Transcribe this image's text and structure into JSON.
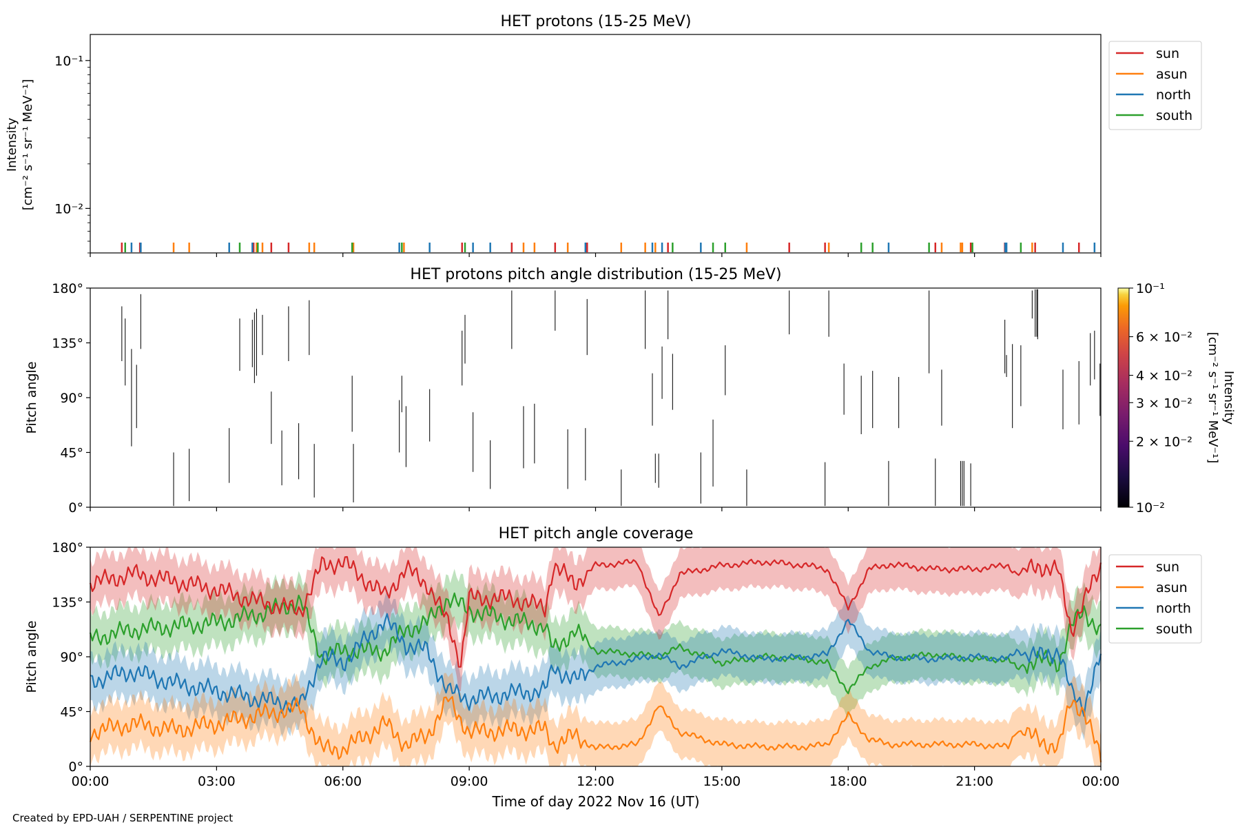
{
  "footer": "Created by EPD-UAH / SERPENTINE project",
  "colors": {
    "sun": "#d62728",
    "asun": "#ff7f0e",
    "north": "#1f77b4",
    "south": "#2ca02c"
  },
  "chart_data": [
    {
      "type": "line",
      "title": "HET protons (15-25 MeV)",
      "ylabel_line1": "Intensity",
      "ylabel_line2": "[cm⁻² s⁻¹ sr⁻¹ MeV⁻¹]",
      "yscale": "log",
      "ylim": [
        0.005,
        0.15
      ],
      "yticks": [
        {
          "value": 0.1,
          "label": "10⁻¹"
        },
        {
          "value": 0.01,
          "label": "10⁻²"
        }
      ],
      "xlim": [
        0,
        24
      ],
      "legend": {
        "position": "right",
        "labels": [
          "sun",
          "asun",
          "north",
          "south"
        ]
      },
      "series": [
        {
          "name": "sun",
          "color": "#d62728",
          "y": 0.005,
          "x": [
            0.75,
            1.18,
            3.88,
            4.3,
            4.71,
            8.83,
            10.01,
            11.04,
            11.8,
            13.72,
            16.6,
            17.45,
            20.07,
            20.91,
            21.72,
            22.44,
            23.48
          ]
        },
        {
          "name": "asun",
          "color": "#ff7f0e",
          "y": 0.005,
          "x": [
            1.98,
            2.35,
            3.95,
            4.09,
            5.2,
            5.32,
            6.25,
            7.45,
            10.29,
            10.55,
            11.34,
            12.61,
            13.18,
            13.42,
            15.59,
            17.54,
            20.22,
            20.67,
            20.71,
            22.37
          ]
        },
        {
          "name": "north",
          "color": "#1f77b4",
          "y": 0.005,
          "x": [
            0.98,
            1.2,
            3.3,
            3.85,
            7.34,
            8.06,
            9.09,
            9.5,
            11.76,
            13.35,
            13.58,
            14.5,
            18.96,
            21.73,
            21.76,
            23.1,
            23.85
          ]
        },
        {
          "name": "south",
          "color": "#2ca02c",
          "y": 0.005,
          "x": [
            0.83,
            3.55,
            3.98,
            6.22,
            7.4,
            8.9,
            13.83,
            14.79,
            15.08,
            18.31,
            18.58,
            19.92,
            20.95,
            22.1
          ]
        }
      ]
    },
    {
      "type": "heatmap",
      "title": "HET protons pitch angle distribution (15-25 MeV)",
      "ylabel": "Pitch angle",
      "ylim": [
        0,
        180
      ],
      "yticks": [
        "0°",
        "45°",
        "90°",
        "135°",
        "180°"
      ],
      "xlim": [
        0,
        24
      ],
      "colorbar": {
        "label_line1": "Intensity",
        "label_line2": "[cm⁻² s⁻¹ sr⁻¹ MeV⁻¹]",
        "scale": "log",
        "range": [
          0.01,
          0.1
        ],
        "ticks": [
          {
            "value": 0.1,
            "label": "10⁻¹"
          },
          {
            "value": 0.06,
            "label": "6 × 10⁻²"
          },
          {
            "value": 0.04,
            "label": "4 × 10⁻²"
          },
          {
            "value": 0.03,
            "label": "3 × 10⁻²"
          },
          {
            "value": 0.02,
            "label": "2 × 10⁻²"
          },
          {
            "value": 0.01,
            "label": "10⁻²"
          }
        ]
      },
      "segments": [
        [
          0.75,
          120,
          165
        ],
        [
          0.83,
          100,
          155
        ],
        [
          0.98,
          50,
          130
        ],
        [
          1.1,
          65,
          117
        ],
        [
          1.2,
          130,
          175
        ],
        [
          1.98,
          1,
          45
        ],
        [
          2.35,
          5,
          48
        ],
        [
          3.3,
          20,
          65
        ],
        [
          3.55,
          112,
          155
        ],
        [
          3.85,
          115,
          154
        ],
        [
          3.9,
          102,
          160
        ],
        [
          3.95,
          108,
          163
        ],
        [
          4.09,
          125,
          158
        ],
        [
          4.3,
          52,
          95
        ],
        [
          4.55,
          18,
          63
        ],
        [
          4.71,
          120,
          165
        ],
        [
          4.95,
          23,
          69
        ],
        [
          5.2,
          125,
          170
        ],
        [
          5.32,
          8,
          52
        ],
        [
          6.22,
          62,
          108
        ],
        [
          6.25,
          4,
          52
        ],
        [
          7.34,
          45,
          88
        ],
        [
          7.4,
          78,
          108
        ],
        [
          7.5,
          33,
          83
        ],
        [
          8.06,
          54,
          97
        ],
        [
          8.83,
          100,
          145
        ],
        [
          8.9,
          118,
          158
        ],
        [
          9.09,
          29,
          78
        ],
        [
          9.5,
          15,
          55
        ],
        [
          10.01,
          130,
          178
        ],
        [
          10.29,
          32,
          83
        ],
        [
          10.55,
          36,
          85
        ],
        [
          11.04,
          145,
          178
        ],
        [
          11.34,
          15,
          64
        ],
        [
          11.76,
          22,
          65
        ],
        [
          11.8,
          125,
          171
        ],
        [
          12.61,
          1,
          31
        ],
        [
          13.18,
          130,
          178
        ],
        [
          13.35,
          67,
          110
        ],
        [
          13.42,
          20,
          44
        ],
        [
          13.5,
          16,
          44
        ],
        [
          13.58,
          89,
          132
        ],
        [
          13.72,
          138,
          178
        ],
        [
          13.83,
          80,
          126
        ],
        [
          14.5,
          3,
          45
        ],
        [
          14.79,
          17,
          72
        ],
        [
          15.08,
          92,
          133
        ],
        [
          15.59,
          1,
          31
        ],
        [
          16.6,
          142,
          178
        ],
        [
          17.45,
          1,
          37
        ],
        [
          17.54,
          140,
          178
        ],
        [
          17.9,
          76,
          118
        ],
        [
          18.31,
          60,
          108
        ],
        [
          18.58,
          65,
          112
        ],
        [
          18.96,
          1,
          38
        ],
        [
          19.2,
          65,
          107
        ],
        [
          19.92,
          110,
          178
        ],
        [
          20.07,
          1,
          40
        ],
        [
          20.22,
          67,
          113
        ],
        [
          20.67,
          1,
          38
        ],
        [
          20.71,
          1,
          38
        ],
        [
          20.75,
          1,
          38
        ],
        [
          20.91,
          1,
          36
        ],
        [
          21.72,
          110,
          154
        ],
        [
          21.76,
          107,
          125
        ],
        [
          21.9,
          65,
          134
        ],
        [
          22.1,
          83,
          133
        ],
        [
          22.37,
          155,
          178
        ],
        [
          22.44,
          140,
          179
        ],
        [
          22.48,
          140,
          179
        ],
        [
          22.5,
          138,
          179
        ],
        [
          23.1,
          64,
          113
        ],
        [
          23.48,
          68,
          120
        ],
        [
          23.75,
          100,
          143
        ],
        [
          23.85,
          105,
          145
        ],
        [
          23.98,
          75,
          118
        ]
      ]
    },
    {
      "type": "area",
      "title": "HET pitch angle coverage",
      "ylabel": "Pitch angle",
      "xlabel": "Time of day 2022 Nov 16 (UT)",
      "ylim": [
        0,
        180
      ],
      "yticks": [
        "0°",
        "45°",
        "90°",
        "135°",
        "180°"
      ],
      "xlim": [
        0,
        24
      ],
      "xticks": [
        "00:00",
        "03:00",
        "06:00",
        "09:00",
        "12:00",
        "15:00",
        "18:00",
        "21:00",
        "00:00"
      ],
      "legend": {
        "position": "right",
        "labels": [
          "sun",
          "asun",
          "north",
          "south"
        ]
      },
      "band_halfwidth": 20,
      "series": [
        {
          "name": "sun",
          "color": "#d62728",
          "t": [
            0,
            1,
            2,
            3,
            4,
            5,
            5.5,
            6,
            7,
            7.5,
            8,
            8.5,
            8.8,
            9,
            10,
            10.8,
            11,
            11.5,
            12,
            13,
            13.5,
            14,
            15,
            16,
            17,
            17.5,
            18,
            18.5,
            19,
            20,
            21,
            21.8,
            22,
            22.5,
            23,
            23.3,
            23.6,
            24
          ],
          "y": [
            150,
            158,
            152,
            145,
            135,
            128,
            165,
            168,
            140,
            162,
            150,
            118,
            85,
            138,
            138,
            130,
            165,
            150,
            165,
            168,
            122,
            158,
            165,
            168,
            165,
            162,
            130,
            162,
            166,
            162,
            162,
            165,
            158,
            165,
            160,
            112,
            135,
            165
          ]
        },
        {
          "name": "asun",
          "color": "#ff7f0e",
          "t": [
            0,
            1,
            2,
            3,
            4,
            5,
            5.5,
            6,
            7,
            7.5,
            8,
            8.5,
            9,
            10,
            10.8,
            11,
            11.5,
            12,
            13,
            13.5,
            14,
            15,
            16,
            17,
            17.5,
            18,
            18.5,
            19,
            20,
            21,
            21.8,
            22,
            22.5,
            23,
            23.3,
            23.6,
            24
          ],
          "y": [
            28,
            35,
            30,
            35,
            42,
            48,
            14,
            14,
            35,
            18,
            25,
            55,
            28,
            30,
            30,
            18,
            25,
            15,
            18,
            50,
            28,
            18,
            16,
            16,
            18,
            42,
            22,
            18,
            18,
            18,
            16,
            30,
            22,
            15,
            55,
            45,
            6
          ]
        },
        {
          "name": "north",
          "color": "#1f77b4",
          "t": [
            0,
            1,
            2,
            3,
            4,
            5,
            5.5,
            6,
            7,
            7.5,
            8,
            8.5,
            9,
            10,
            10.8,
            11,
            11.5,
            12,
            13,
            13.5,
            14,
            15,
            16,
            17,
            17.5,
            18,
            18.5,
            19,
            20,
            21,
            21.8,
            22,
            22.5,
            23,
            23.3,
            23.6,
            24
          ],
          "y": [
            70,
            78,
            68,
            62,
            55,
            50,
            90,
            85,
            120,
            100,
            95,
            62,
            55,
            60,
            62,
            82,
            70,
            82,
            88,
            92,
            82,
            95,
            88,
            90,
            92,
            120,
            95,
            90,
            88,
            90,
            88,
            95,
            90,
            95,
            60,
            50,
            90
          ]
        },
        {
          "name": "south",
          "color": "#2ca02c",
          "t": [
            0,
            1,
            2,
            3,
            4,
            5,
            5.5,
            6,
            7,
            7.5,
            8,
            8.5,
            9,
            10,
            10.8,
            11,
            11.5,
            12,
            13,
            13.5,
            14,
            15,
            16,
            17,
            17.5,
            18,
            18.5,
            19,
            20,
            21,
            21.8,
            22,
            22.5,
            23,
            23.3,
            23.6,
            24
          ],
          "y": [
            105,
            112,
            115,
            118,
            125,
            135,
            90,
            95,
            95,
            112,
            118,
            138,
            128,
            120,
            115,
            95,
            112,
            95,
            92,
            90,
            98,
            85,
            90,
            88,
            85,
            62,
            82,
            88,
            92,
            88,
            88,
            80,
            88,
            85,
            115,
            128,
            110
          ]
        }
      ]
    }
  ]
}
